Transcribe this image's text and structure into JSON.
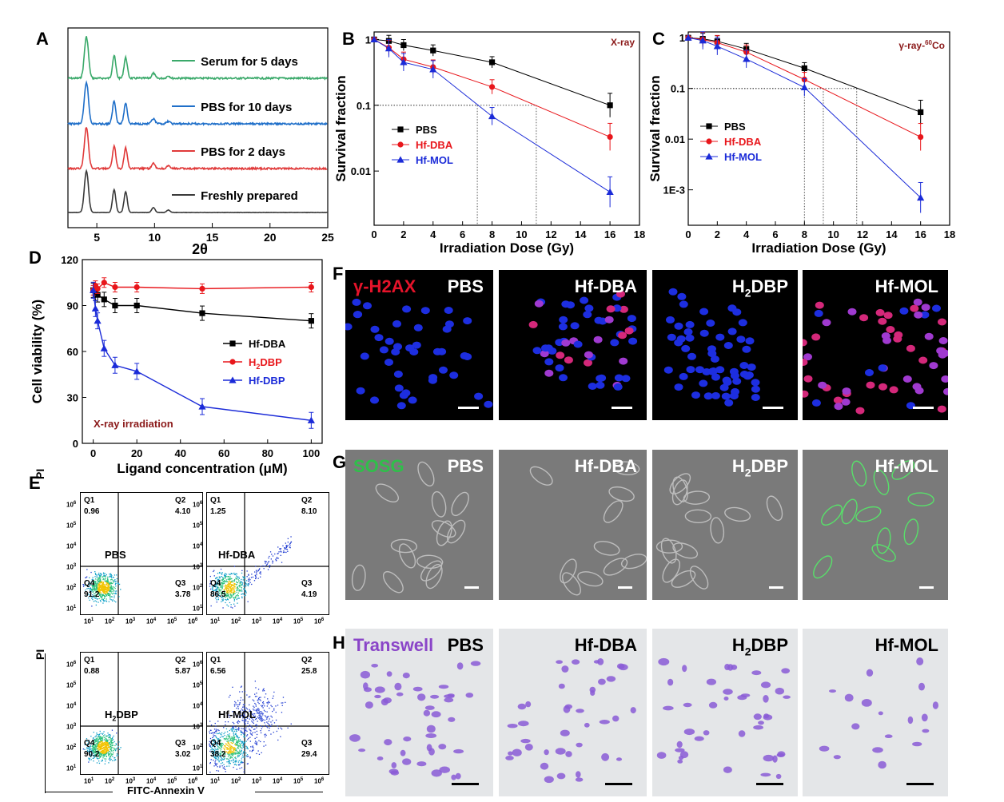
{
  "panelA": {
    "letter": "A",
    "xlabel": "2θ",
    "xticks": [
      "5",
      "10",
      "15",
      "20",
      "25"
    ],
    "series": [
      {
        "name": "Serum for 5 days",
        "color": "#3aa96a"
      },
      {
        "name": "PBS for 10 days",
        "color": "#1f6fc9"
      },
      {
        "name": "PBS for 2 days",
        "color": "#e03a3a"
      },
      {
        "name": "Freshly prepared",
        "color": "#3a3a3a"
      }
    ]
  },
  "panelB": {
    "letter": "B",
    "annotation": "X-ray",
    "xlabel": "Irradiation Dose (Gy)",
    "ylabel": "Survival fraction",
    "xticks": [
      "0",
      "2",
      "4",
      "6",
      "8",
      "10",
      "12",
      "14",
      "16",
      "18"
    ],
    "yticks": [
      "1",
      "0.1",
      "0.01"
    ],
    "chart_data": {
      "type": "line",
      "x": [
        0,
        1,
        2,
        4,
        8,
        16
      ],
      "xlim": [
        0,
        18
      ],
      "ylim": [
        0.0015,
        1.3
      ],
      "yscale": "log",
      "series": [
        {
          "name": "PBS",
          "color": "#000000",
          "marker": "square",
          "values": [
            1,
            0.95,
            0.82,
            0.68,
            0.45,
            0.1
          ]
        },
        {
          "name": "Hf-DBA",
          "color": "#e8161b",
          "marker": "circle",
          "values": [
            1,
            0.75,
            0.5,
            0.38,
            0.19,
            0.033
          ]
        },
        {
          "name": "Hf-MOL",
          "color": "#1b2bd8",
          "marker": "triangle",
          "values": [
            1,
            0.73,
            0.45,
            0.35,
            0.068,
            0.0048
          ]
        }
      ]
    }
  },
  "panelC": {
    "letter": "C",
    "annotation": "γ-ray-",
    "annotation_sup": "60",
    "annotation_suffix": "Co",
    "xlabel": "Irradiation Dose (Gy)",
    "ylabel": "Survival fraction",
    "xticks": [
      "0",
      "2",
      "4",
      "6",
      "8",
      "10",
      "12",
      "14",
      "16",
      "18"
    ],
    "yticks": [
      "1",
      "0.1",
      "0.01",
      "1E-3"
    ],
    "chart_data": {
      "type": "line",
      "x": [
        0,
        1,
        2,
        4,
        8,
        16
      ],
      "xlim": [
        0,
        18
      ],
      "ylim": [
        0.0002,
        1.3
      ],
      "yscale": "log",
      "series": [
        {
          "name": "PBS",
          "color": "#000000",
          "marker": "square",
          "values": [
            1,
            0.95,
            0.85,
            0.6,
            0.25,
            0.034
          ]
        },
        {
          "name": "Hf-DBA",
          "color": "#e8161b",
          "marker": "circle",
          "values": [
            1,
            0.92,
            0.8,
            0.52,
            0.15,
            0.011
          ]
        },
        {
          "name": "Hf-MOL",
          "color": "#1b2bd8",
          "marker": "triangle",
          "values": [
            1,
            0.88,
            0.68,
            0.38,
            0.105,
            0.0007
          ]
        }
      ]
    }
  },
  "panelD": {
    "letter": "D",
    "annotation": "X-ray irradiation",
    "xlabel": "Ligand concentration (μM)",
    "ylabel": "Cell viability (%)",
    "xticks": [
      "0",
      "20",
      "40",
      "60",
      "80",
      "100"
    ],
    "yticks": [
      "0",
      "30",
      "60",
      "90",
      "120"
    ],
    "chart_data": {
      "type": "line",
      "x": [
        0,
        1,
        2,
        5,
        10,
        20,
        50,
        100
      ],
      "xlim": [
        -5,
        105
      ],
      "ylim": [
        0,
        120
      ],
      "series": [
        {
          "name": "Hf-DBA",
          "color": "#000000",
          "marker": "square",
          "values": [
            100,
            98,
            97,
            94,
            90,
            90,
            85,
            80
          ]
        },
        {
          "name": "H2DBP",
          "label": "H",
          "label_sub": "2",
          "label_suffix": "DBP",
          "color": "#e8161b",
          "marker": "circle",
          "values": [
            100,
            103,
            101,
            105,
            102,
            102,
            101,
            102
          ]
        },
        {
          "name": "Hf-DBP",
          "color": "#1b2bd8",
          "marker": "triangle",
          "values": [
            100,
            88,
            80,
            62,
            51,
            47,
            24,
            15
          ]
        }
      ]
    }
  },
  "panelE": {
    "letter": "E",
    "xlabel": "FITC-Annexin V",
    "ylabel": "PI",
    "ticks": [
      "10",
      "10",
      "10",
      "10",
      "10",
      "10"
    ],
    "tick_exps": [
      "1",
      "2",
      "3",
      "4",
      "5",
      "6"
    ],
    "plots": [
      {
        "sample": "PBS",
        "q1": "0.96",
        "q2": "4.10",
        "q3": "3.78",
        "q4": "91.2"
      },
      {
        "sample": "Hf-DBA",
        "q1": "1.25",
        "q2": "8.10",
        "q3": "4.19",
        "q4": "86.5"
      },
      {
        "sample": "H2DBP",
        "q1": "0.88",
        "q2": "5.87",
        "q3": "3.02",
        "q4": "90.2"
      },
      {
        "sample": "Hf-MOL",
        "q1": "6.56",
        "q2": "25.8",
        "q3": "29.4",
        "q4": "38.2"
      }
    ],
    "quadrant_names": [
      "Q1",
      "Q2",
      "Q3",
      "Q4"
    ],
    "h2dbp_parts": [
      "H",
      "2",
      "DBP"
    ]
  },
  "panelF": {
    "letter": "F",
    "tag": "γ-H2AX",
    "labels": [
      "PBS",
      "Hf-DBA",
      "H2DBP",
      "Hf-MOL"
    ]
  },
  "panelG": {
    "letter": "G",
    "tag": "SOSG",
    "labels": [
      "PBS",
      "Hf-DBA",
      "H2DBP",
      "Hf-MOL"
    ]
  },
  "panelH": {
    "letter": "H",
    "tag": "Transwell",
    "labels": [
      "PBS",
      "Hf-DBA",
      "H2DBP",
      "Hf-MOL"
    ]
  },
  "h2": {
    "pre": "H",
    "sub": "2",
    "post": "DBP"
  }
}
